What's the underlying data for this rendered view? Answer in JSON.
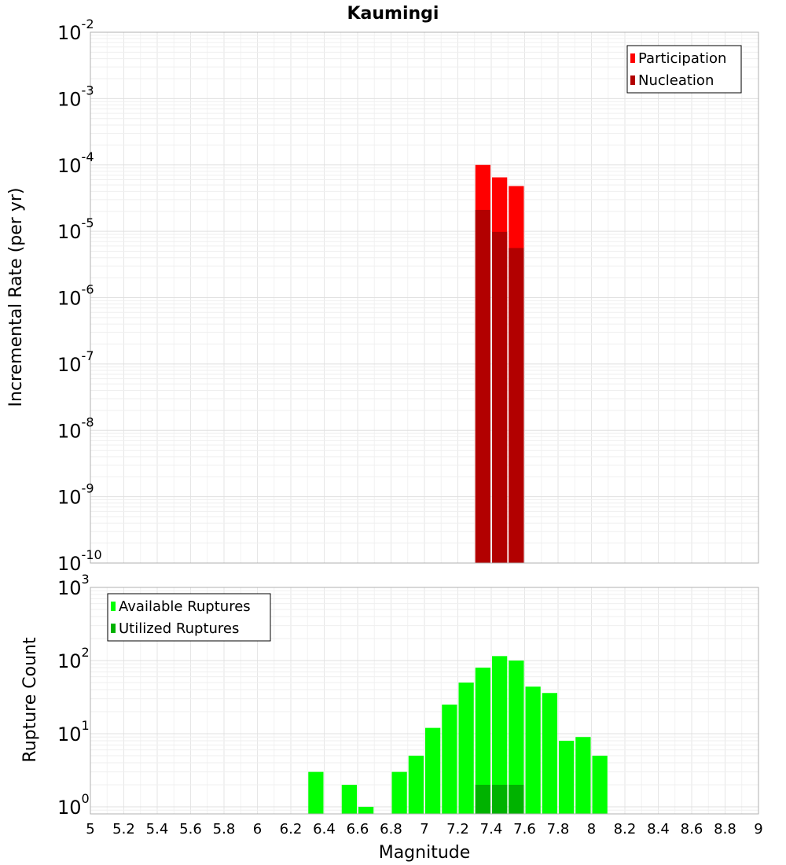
{
  "chart_data": [
    {
      "type": "bar",
      "title": "Kaumingi",
      "xlabel": "",
      "ylabel": "Incremental Rate (per yr)",
      "yscale": "log",
      "xlim": [
        5,
        9
      ],
      "ylim": [
        1e-10,
        0.01
      ],
      "ytick_labels": [
        {
          "base": "10",
          "exp": "-10"
        },
        {
          "base": "10",
          "exp": "-9"
        },
        {
          "base": "10",
          "exp": "-8"
        },
        {
          "base": "10",
          "exp": "-7"
        },
        {
          "base": "10",
          "exp": "-6"
        },
        {
          "base": "10",
          "exp": "-5"
        },
        {
          "base": "10",
          "exp": "-4"
        },
        {
          "base": "10",
          "exp": "-3"
        },
        {
          "base": "10",
          "exp": "-2"
        }
      ],
      "bar_width": 0.1,
      "grid": true,
      "legend_position": "top-right",
      "series": [
        {
          "name": "Participation",
          "color": "#ff0000",
          "x": [
            7.35,
            7.45,
            7.55
          ],
          "values": [
            0.0001,
            6.5e-05,
            4.8e-05
          ]
        },
        {
          "name": "Nucleation",
          "color": "#b20000",
          "x": [
            7.35,
            7.45,
            7.55
          ],
          "values": [
            2.1e-05,
            9.8e-06,
            5.6e-06
          ]
        }
      ]
    },
    {
      "type": "bar",
      "title": "",
      "xlabel": "Magnitude",
      "ylabel": "Rupture Count",
      "yscale": "log",
      "xlim": [
        5,
        9
      ],
      "ylim": [
        0.8,
        1000
      ],
      "ytick_labels": [
        {
          "base": "10",
          "exp": "0"
        },
        {
          "base": "10",
          "exp": "1"
        },
        {
          "base": "10",
          "exp": "2"
        },
        {
          "base": "10",
          "exp": "3"
        }
      ],
      "xtick_labels": [
        "5",
        "5.2",
        "5.4",
        "5.6",
        "5.8",
        "6",
        "6.2",
        "6.4",
        "6.6",
        "6.8",
        "7",
        "7.2",
        "7.4",
        "7.6",
        "7.8",
        "8",
        "8.2",
        "8.4",
        "8.6",
        "8.8",
        "9"
      ],
      "bar_width": 0.1,
      "grid": true,
      "legend_position": "top-left",
      "series": [
        {
          "name": "Available Ruptures",
          "color": "#00ff00",
          "x": [
            6.35,
            6.55,
            6.65,
            6.85,
            6.95,
            7.05,
            7.15,
            7.25,
            7.35,
            7.45,
            7.55,
            7.65,
            7.75,
            7.85,
            7.95,
            8.05
          ],
          "values": [
            3,
            2,
            1,
            3,
            5,
            12,
            25,
            50,
            80,
            115,
            100,
            44,
            36,
            8,
            9,
            5
          ]
        },
        {
          "name": "Utilized Ruptures",
          "color": "#00b200",
          "x": [
            7.35,
            7.45,
            7.55
          ],
          "values": [
            2,
            2,
            2
          ]
        }
      ]
    }
  ]
}
